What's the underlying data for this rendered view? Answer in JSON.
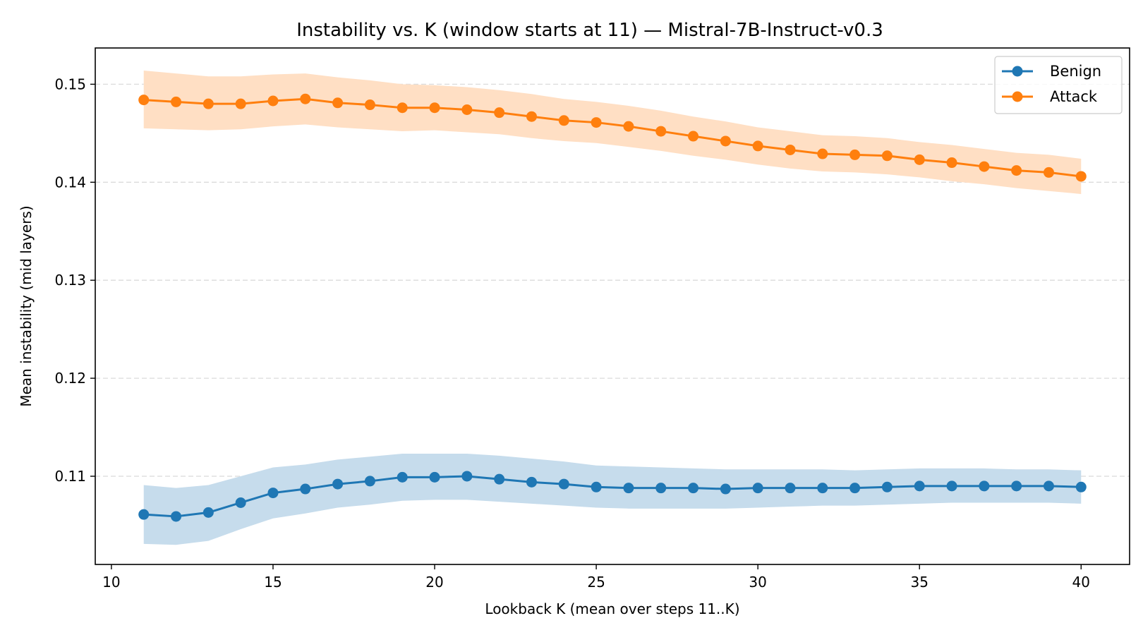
{
  "chart_data": {
    "type": "line",
    "title": "Instability vs. K (window starts at 11) — Mistral-7B-Instruct-v0.3",
    "xlabel": "Lookback K (mean over steps 11..K)",
    "ylabel": "Mean instability (mid layers)",
    "xlim": [
      9.5,
      41.5
    ],
    "ylim": [
      0.101,
      0.1537
    ],
    "xticks": [
      10,
      15,
      20,
      25,
      30,
      35,
      40
    ],
    "yticks": [
      0.11,
      0.12,
      0.13,
      0.14,
      0.15
    ],
    "ytick_labels": [
      "0.11",
      "0.12",
      "0.13",
      "0.14",
      "0.15"
    ],
    "grid": "horizontal dashed",
    "legend_position": "top-right",
    "x": [
      11,
      12,
      13,
      14,
      15,
      16,
      17,
      18,
      19,
      20,
      21,
      22,
      23,
      24,
      25,
      26,
      27,
      28,
      29,
      30,
      31,
      32,
      33,
      34,
      35,
      36,
      37,
      38,
      39,
      40
    ],
    "series": [
      {
        "name": "Benign",
        "color": "#1f77b4",
        "band_color": "#c6dcec",
        "values": [
          0.1061,
          0.1059,
          0.1063,
          0.1073,
          0.1083,
          0.1087,
          0.1092,
          0.1095,
          0.1099,
          0.1099,
          0.11,
          0.1097,
          0.1094,
          0.1092,
          0.1089,
          0.1088,
          0.1088,
          0.1088,
          0.1087,
          0.1088,
          0.1088,
          0.1088,
          0.1088,
          0.1089,
          0.109,
          0.109,
          0.109,
          0.109,
          0.109,
          0.1089
        ],
        "lower": [
          0.1031,
          0.103,
          0.1034,
          0.1046,
          0.1057,
          0.1062,
          0.1068,
          0.1071,
          0.1075,
          0.1076,
          0.1076,
          0.1074,
          0.1072,
          0.107,
          0.1068,
          0.1067,
          0.1067,
          0.1067,
          0.1067,
          0.1068,
          0.1069,
          0.107,
          0.107,
          0.1071,
          0.1072,
          0.1073,
          0.1073,
          0.1073,
          0.1073,
          0.1072
        ],
        "upper": [
          0.1091,
          0.1088,
          0.1091,
          0.11,
          0.1109,
          0.1112,
          0.1117,
          0.112,
          0.1123,
          0.1123,
          0.1123,
          0.1121,
          0.1118,
          0.1115,
          0.1111,
          0.111,
          0.1109,
          0.1108,
          0.1107,
          0.1107,
          0.1107,
          0.1107,
          0.1106,
          0.1107,
          0.1108,
          0.1108,
          0.1108,
          0.1107,
          0.1107,
          0.1106
        ]
      },
      {
        "name": "Attack",
        "color": "#ff7f0e",
        "band_color": "#ffdfc4",
        "values": [
          0.1484,
          0.1482,
          0.148,
          0.148,
          0.1483,
          0.1485,
          0.1481,
          0.1479,
          0.1476,
          0.1476,
          0.1474,
          0.1471,
          0.1467,
          0.1463,
          0.1461,
          0.1457,
          0.1452,
          0.1447,
          0.1442,
          0.1437,
          0.1433,
          0.1429,
          0.1428,
          0.1427,
          0.1423,
          0.142,
          0.1416,
          0.1412,
          0.141,
          0.1406
        ],
        "lower": [
          0.1455,
          0.1454,
          0.1453,
          0.1454,
          0.1457,
          0.1459,
          0.1456,
          0.1454,
          0.1452,
          0.1453,
          0.1451,
          0.1449,
          0.1445,
          0.1442,
          0.144,
          0.1436,
          0.1432,
          0.1427,
          0.1423,
          0.1418,
          0.1414,
          0.1411,
          0.141,
          0.1408,
          0.1405,
          0.1401,
          0.1398,
          0.1394,
          0.1391,
          0.1388
        ],
        "upper": [
          0.1514,
          0.1511,
          0.1508,
          0.1508,
          0.151,
          0.1511,
          0.1507,
          0.1504,
          0.15,
          0.1499,
          0.1497,
          0.1494,
          0.149,
          0.1485,
          0.1482,
          0.1478,
          0.1473,
          0.1467,
          0.1462,
          0.1456,
          0.1452,
          0.1448,
          0.1447,
          0.1445,
          0.1441,
          0.1438,
          0.1434,
          0.143,
          0.1428,
          0.1424
        ]
      }
    ]
  }
}
